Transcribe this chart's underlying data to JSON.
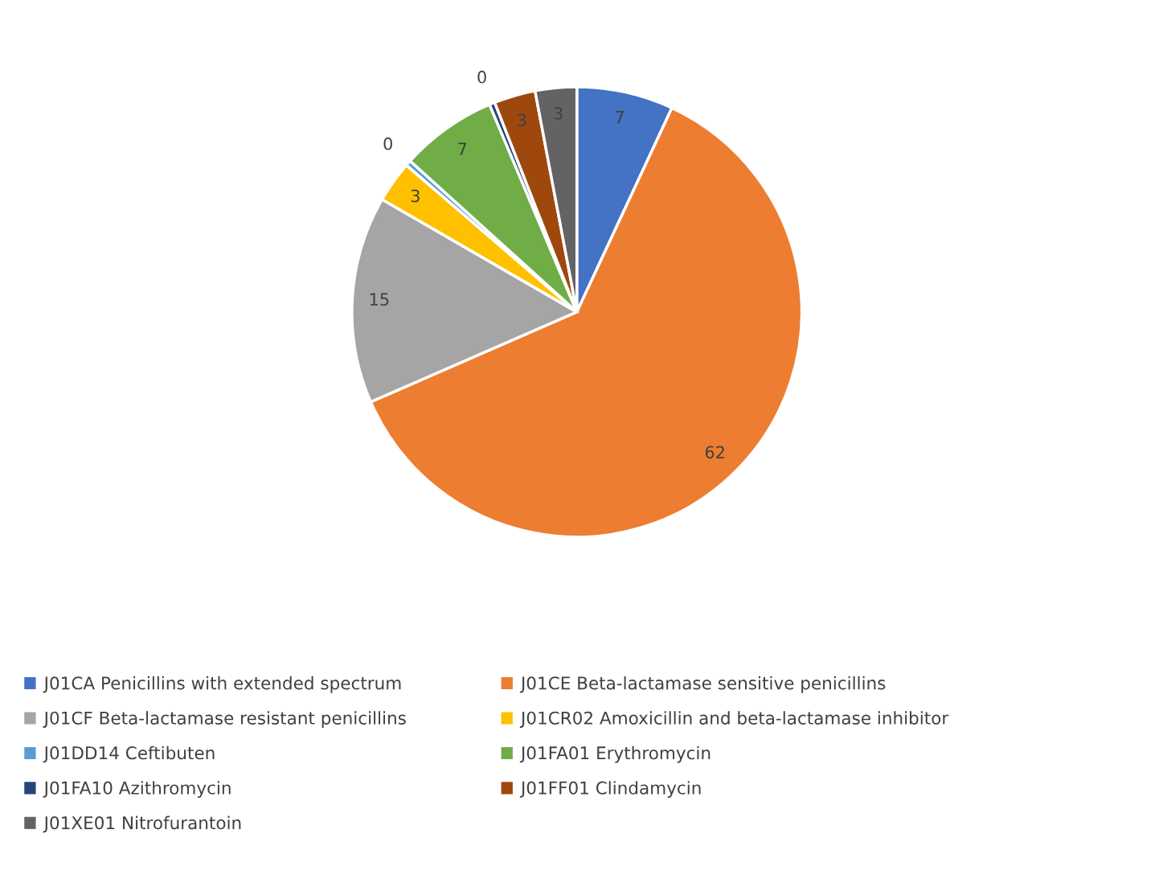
{
  "chart_data": {
    "type": "pie",
    "categories": [
      "J01CA Penicillins with extended spectrum",
      "J01CE Beta-lactamase sensitive penicillins",
      "J01CF Beta-lactamase resistant penicillins",
      "J01CR02 Amoxicillin and beta-lactamase inhibitor",
      "J01DD14 Ceftibuten",
      "J01FA01 Erythromycin",
      "J01FA10 Azithromycin",
      "J01FF01 Clindamycin",
      "J01XE01 Nitrofurantoin"
    ],
    "values": [
      7,
      62,
      15,
      3,
      0.4,
      7,
      0.4,
      3,
      3
    ],
    "value_labels": [
      "7",
      "62",
      "15",
      "3",
      "0",
      "7",
      "0",
      "3",
      "3"
    ],
    "colors": [
      "#4472c4",
      "#ed7d31",
      "#a5a5a5",
      "#ffc000",
      "#5b9bd5",
      "#70ad47",
      "#264478",
      "#9e480e",
      "#636363"
    ],
    "legend": "bottom"
  }
}
